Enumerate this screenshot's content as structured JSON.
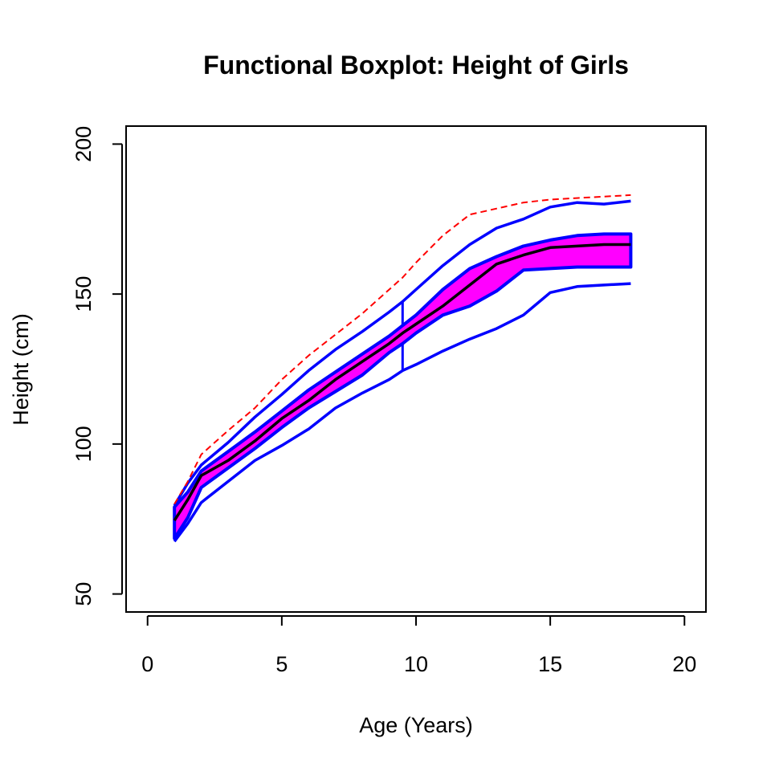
{
  "chart_data": {
    "type": "functional-boxplot",
    "title": "Functional Boxplot: Height of Girls",
    "xlabel": "Age (Years)",
    "ylabel": "Height (cm)",
    "xlim": [
      -0.8,
      20.8
    ],
    "ylim": [
      44,
      206
    ],
    "xticks": [
      0,
      5,
      10,
      15,
      20
    ],
    "yticks": [
      50,
      100,
      150,
      200
    ],
    "grid": false,
    "colors": {
      "envelope": "#ff00ff",
      "boundary": "#0000ff",
      "median": "#000000",
      "outlier": "#ff0000"
    },
    "x": [
      1,
      1.5,
      2,
      3,
      4,
      5,
      6,
      7,
      8,
      9,
      9.5,
      10,
      11,
      12,
      13,
      14,
      15,
      16,
      17,
      18
    ],
    "series": [
      {
        "role": "max-whisker",
        "values": [
          79.5,
          87,
          93,
          100.5,
          109,
          116.5,
          124.5,
          131.5,
          137.5,
          144,
          147.5,
          151.5,
          159.5,
          166.5,
          172,
          175,
          179,
          180.5,
          180,
          181
        ]
      },
      {
        "role": "upper-box",
        "values": [
          79,
          84,
          91,
          97.5,
          104,
          111,
          118,
          124,
          130,
          136,
          139.5,
          143,
          151.5,
          158.5,
          162.5,
          166,
          168,
          169.5,
          170,
          170
        ]
      },
      {
        "role": "median",
        "values": [
          74.5,
          81.5,
          89.5,
          94.5,
          101,
          108.5,
          114.5,
          121.5,
          127.5,
          133.5,
          137,
          140,
          146,
          153,
          160,
          163,
          165.5,
          166,
          166.5,
          166.5
        ]
      },
      {
        "role": "lower-box",
        "values": [
          68.5,
          75.5,
          85.5,
          92,
          98.5,
          105.5,
          112,
          117.5,
          123,
          130.5,
          133.5,
          137,
          143,
          146,
          151,
          158,
          158.5,
          159,
          159,
          159
        ]
      },
      {
        "role": "min-whisker",
        "values": [
          67.5,
          73.5,
          80.5,
          87.5,
          94.5,
          99.5,
          105,
          112,
          117,
          121.5,
          124.5,
          126.5,
          131,
          135,
          138.5,
          143,
          150.5,
          152.5,
          153,
          153.5
        ]
      },
      {
        "role": "outlier",
        "values": [
          80,
          87.5,
          96.5,
          104.5,
          112,
          121.5,
          129.5,
          136.5,
          143.5,
          151.5,
          155.5,
          160.5,
          169.5,
          176.5,
          178.5,
          180.5,
          181.5,
          182,
          182.5,
          183
        ]
      }
    ],
    "whisker_x": 9.5
  }
}
